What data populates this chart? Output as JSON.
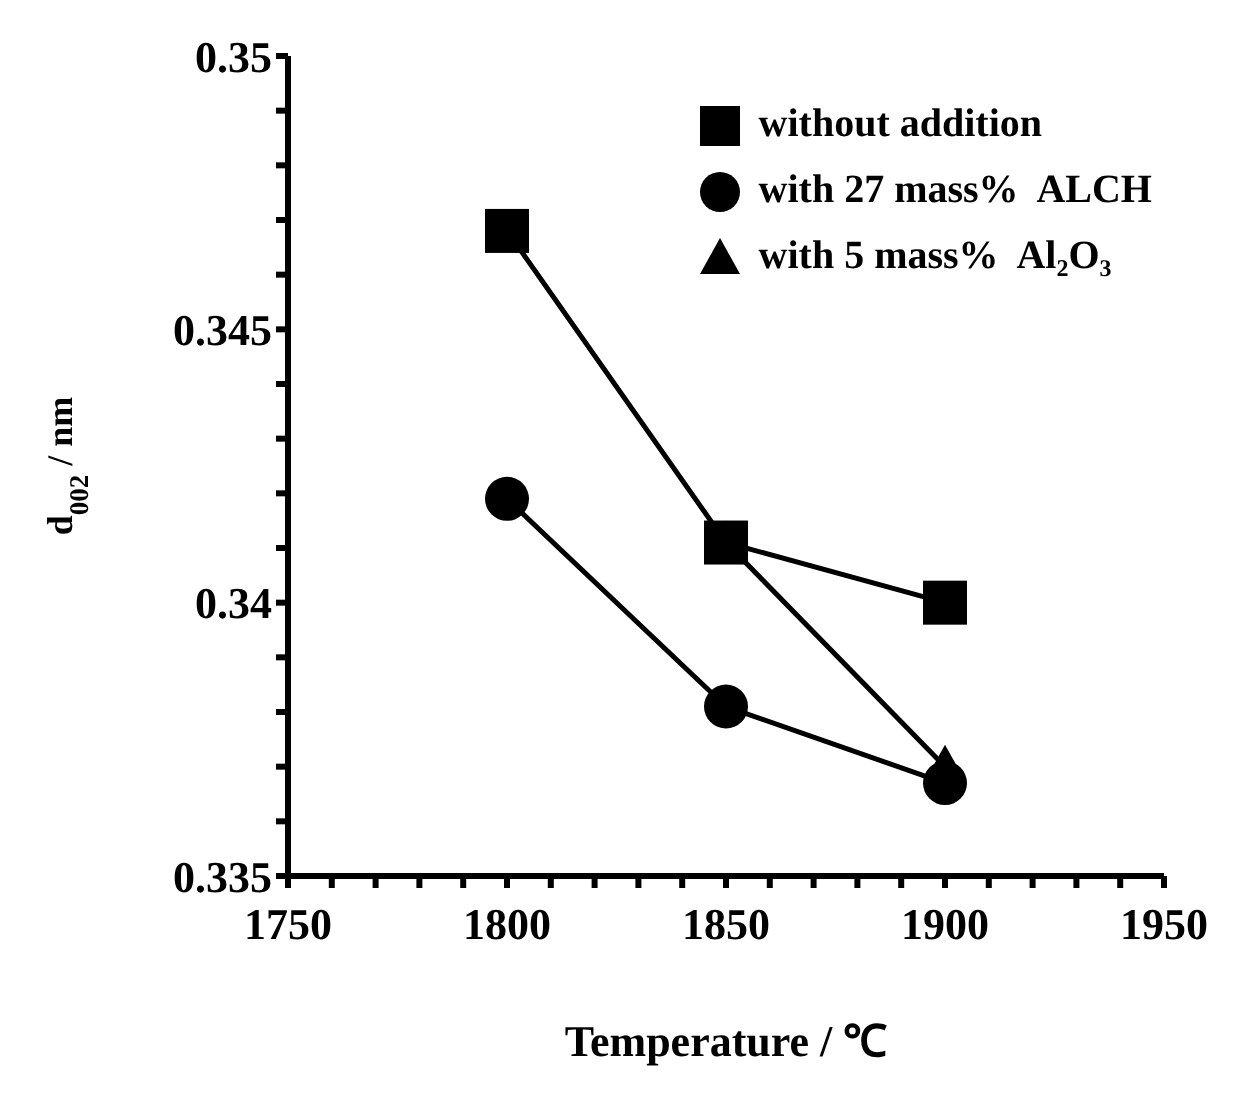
{
  "chart_data": {
    "type": "line",
    "xlabel": "Temperature / ℃",
    "ylabel": "d$_{002}$ / nm",
    "x": [
      1800,
      1850,
      1900
    ],
    "series": [
      {
        "name": "without addition",
        "color": "#000000",
        "marker": "square",
        "values": [
          0.3468,
          0.3411,
          0.34
        ]
      },
      {
        "name": "with 27 mass%  ALCH",
        "color": "#000000",
        "marker": "circle",
        "values": [
          0.3419,
          0.3381,
          0.3367
        ]
      },
      {
        "name": "with 5 mass%  Al₂O₃",
        "color": "#000000",
        "marker": "triangle",
        "values": [
          null,
          0.3411,
          0.337
        ]
      }
    ],
    "xlim": [
      1750,
      1950
    ],
    "xticks": [
      1750,
      {
        "value": 1760,
        "label": null
      },
      {
        "value": 1770,
        "label": null
      },
      {
        "value": 1780,
        "label": null
      },
      {
        "value": 1790,
        "label": null
      },
      1800,
      {
        "value": 1810,
        "label": null
      },
      {
        "value": 1820,
        "label": null
      },
      {
        "value": 1830,
        "label": null
      },
      {
        "value": 1840,
        "label": null
      },
      1850,
      {
        "value": 1860,
        "label": null
      },
      {
        "value": 1870,
        "label": null
      },
      {
        "value": 1880,
        "label": null
      },
      {
        "value": 1890,
        "label": null
      },
      1900,
      {
        "value": 1910,
        "label": null
      },
      {
        "value": 1920,
        "label": null
      },
      {
        "value": 1930,
        "label": null
      },
      {
        "value": 1940,
        "label": null
      },
      1950
    ],
    "ylim": [
      0.335,
      0.35
    ],
    "yticks": [
      0.335,
      {
        "value": 0.336,
        "label": null
      },
      {
        "value": 0.337,
        "label": null
      },
      {
        "value": 0.338,
        "label": null
      },
      {
        "value": 0.339,
        "label": null
      },
      0.34,
      {
        "value": 0.341,
        "label": null
      },
      {
        "value": 0.342,
        "label": null
      },
      {
        "value": 0.343,
        "label": null
      },
      {
        "value": 0.344,
        "label": null
      },
      0.345,
      {
        "value": 0.346,
        "label": null
      },
      {
        "value": 0.347,
        "label": null
      },
      {
        "value": 0.348,
        "label": null
      },
      {
        "value": 0.349,
        "label": null
      },
      0.35
    ],
    "legend": "top right",
    "grid": false,
    "line_style": "solid"
  }
}
